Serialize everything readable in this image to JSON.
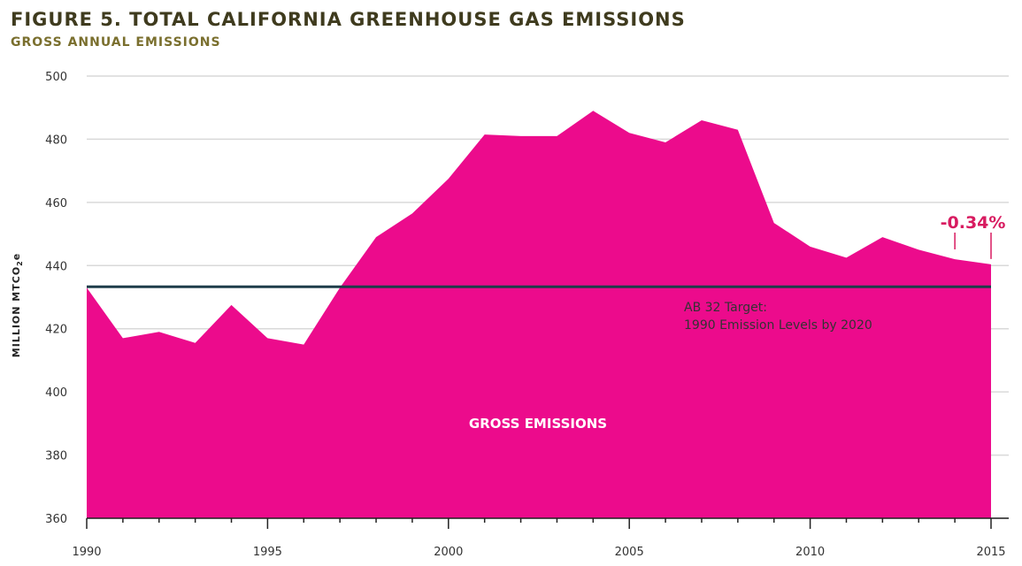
{
  "chart_data": {
    "type": "area",
    "title": "FIGURE 5. TOTAL CALIFORNIA GREENHOUSE GAS EMISSIONS",
    "subtitle": "GROSS ANNUAL EMISSIONS",
    "ylabel": "MILLION MTCO",
    "ylabel_sub": "2",
    "ylabel_suffix": "e",
    "ylim": [
      360,
      500
    ],
    "yticks": [
      360,
      380,
      400,
      420,
      440,
      460,
      480,
      500
    ],
    "xlim": [
      1990,
      2015
    ],
    "xticks": [
      1990,
      1995,
      2000,
      2005,
      2010,
      2015
    ],
    "x": [
      1990,
      1991,
      1992,
      1993,
      1994,
      1995,
      1996,
      1997,
      1998,
      1999,
      2000,
      2001,
      2002,
      2003,
      2004,
      2005,
      2006,
      2007,
      2008,
      2009,
      2010,
      2011,
      2012,
      2013,
      2014,
      2015
    ],
    "series": [
      {
        "name": "GROSS EMISSIONS",
        "values": [
          433,
          417,
          419,
          415.5,
          427.5,
          417,
          415,
          433,
          449,
          456.5,
          467.5,
          481.5,
          481,
          481,
          489,
          482,
          479,
          486,
          483,
          453.5,
          446,
          442.5,
          449,
          445,
          442,
          440.4
        ],
        "color": "#ec0b8c"
      }
    ],
    "target": {
      "value": 433.3,
      "label_line1": "AB 32 Target:",
      "label_line2": "1990 Emission Levels by 2020",
      "color": "#1e3d4a"
    },
    "annotation": {
      "text": "-0.34%",
      "from_year": 2014,
      "to_year": 2015,
      "color": "#d81b60"
    },
    "area_label": "GROSS EMISSIONS",
    "grid": true
  }
}
